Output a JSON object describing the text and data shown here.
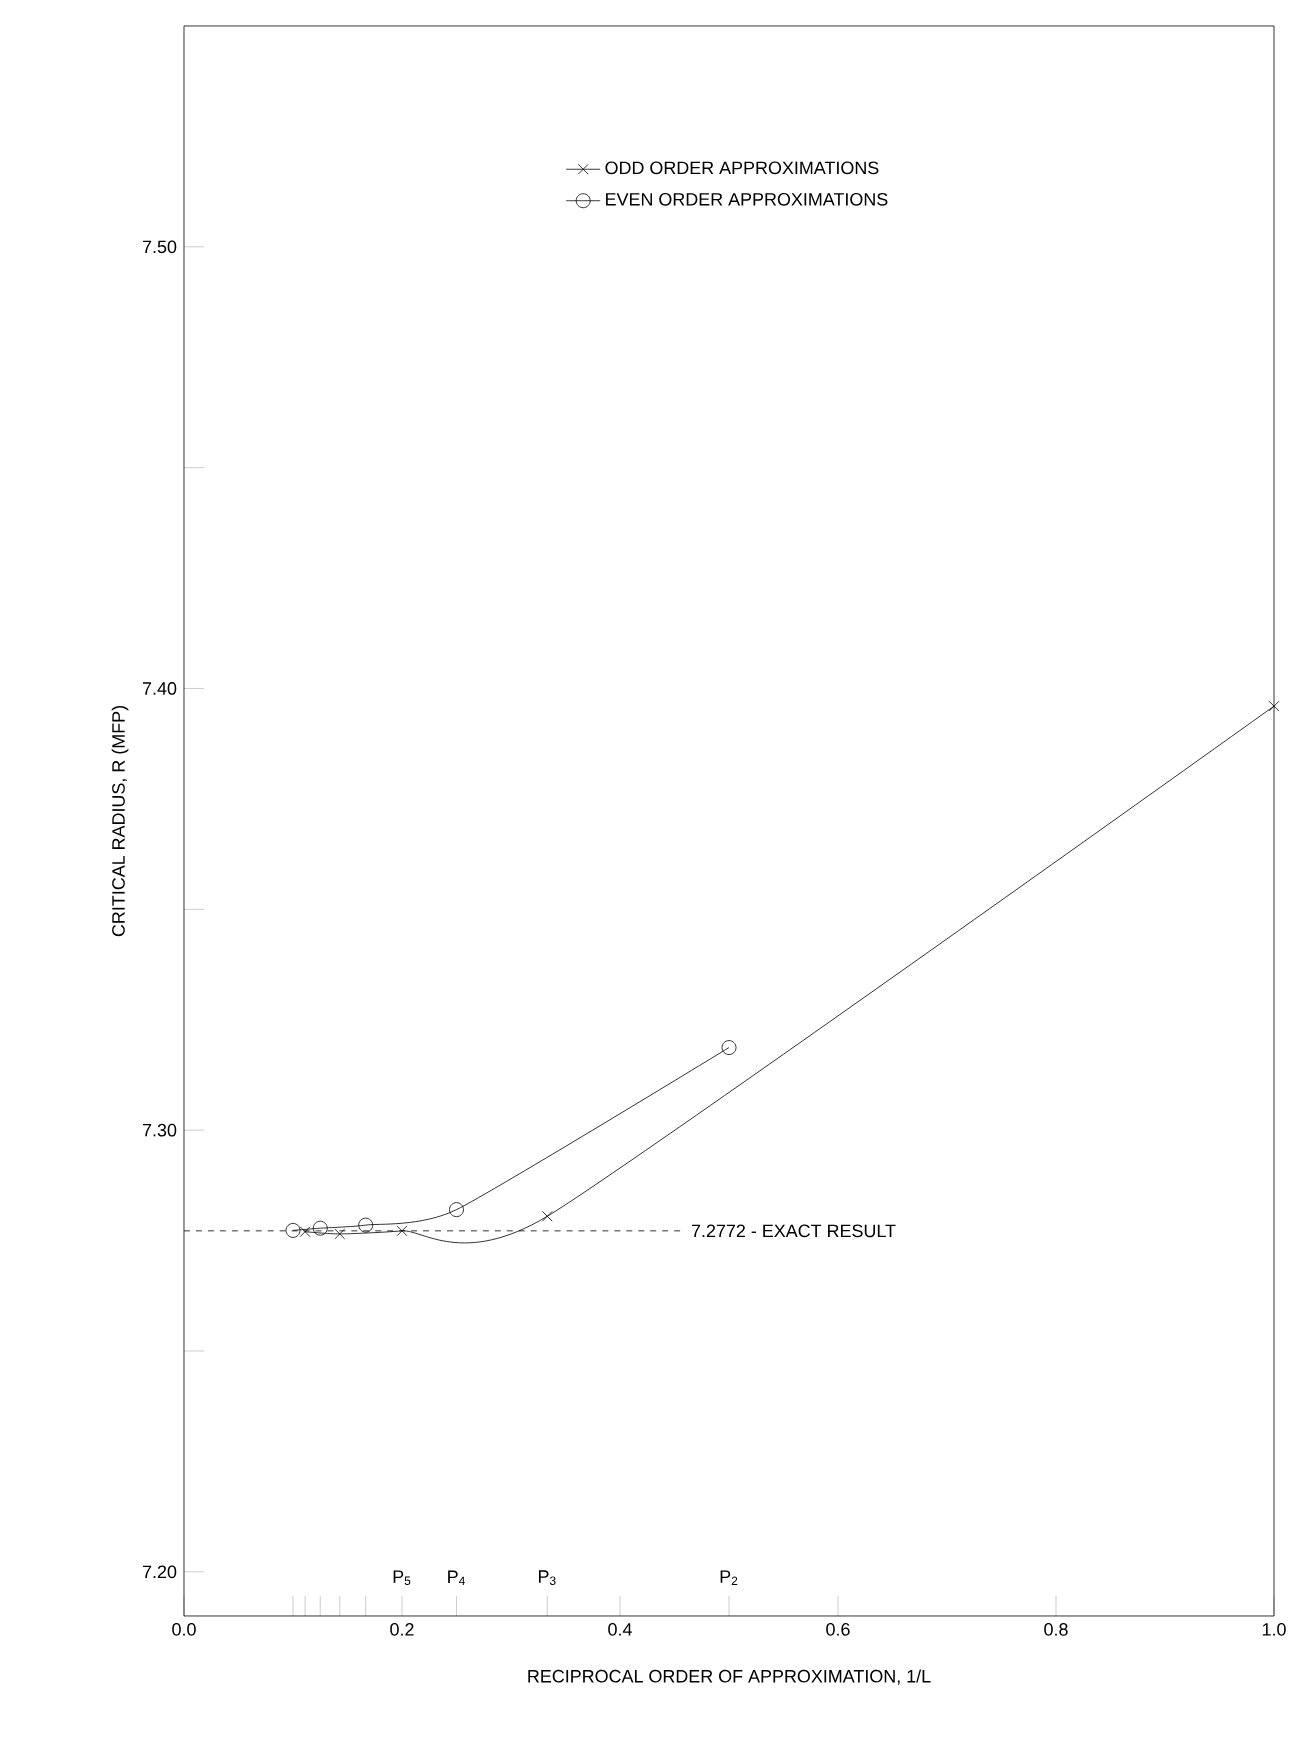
{
  "chart_data": {
    "type": "line",
    "xlabel": "RECIPROCAL ORDER OF APPROXIMATION, 1/L",
    "ylabel": "CRITICAL RADIUS, R (MFP)",
    "series": [
      {
        "name": "ODD ORDER APPROXIMATIONS",
        "color": "#000000",
        "marker": "cross",
        "x": [
          0.1111,
          0.1429,
          0.2,
          0.3333,
          1.0
        ],
        "values": [
          7.277,
          7.2765,
          7.2772,
          7.2805,
          7.396
        ]
      },
      {
        "name": "EVEN ORDER APPROXIMATIONS",
        "color": "#000000",
        "marker": "circle",
        "x": [
          0.1,
          0.125,
          0.1667,
          0.25,
          0.5
        ],
        "values": [
          7.2773,
          7.2778,
          7.2785,
          7.282,
          7.3187
        ]
      }
    ],
    "xlim": [
      0,
      1.0
    ],
    "ylim": [
      7.19,
      7.55
    ],
    "xticks": [
      {
        "value": 0,
        "label": "0.0"
      },
      {
        "value": 0.2,
        "label": "0.2"
      },
      {
        "value": 0.4,
        "label": "0.4"
      },
      {
        "value": 0.6,
        "label": "0.6"
      },
      {
        "value": 0.8,
        "label": "0.8"
      },
      {
        "value": 1.0,
        "label": "1.0"
      },
      {
        "value": 0.1,
        "label": null
      },
      {
        "value": 0.1111,
        "label": null
      },
      {
        "value": 0.125,
        "label": null
      },
      {
        "value": 0.1429,
        "label": null
      },
      {
        "value": 0.1667,
        "label": null
      },
      {
        "value": 0.25,
        "label": null
      },
      {
        "value": 0.3333,
        "label": null
      },
      {
        "value": 0.5,
        "label": null
      }
    ],
    "yticks": [
      {
        "value": 7.2,
        "label": "7.20"
      },
      {
        "value": 7.25,
        "label": null
      },
      {
        "value": 7.3,
        "label": "7.30"
      },
      {
        "value": 7.35,
        "label": null
      },
      {
        "value": 7.4,
        "label": "7.40"
      },
      {
        "value": 7.45,
        "label": null
      },
      {
        "value": 7.5,
        "label": "7.50"
      }
    ],
    "ref_lines": [
      {
        "axis": "y",
        "value": 7.2772,
        "label": "7.2772 - EXACT RESULT",
        "line_style": "dashed"
      }
    ],
    "annotations": [
      {
        "text": "P$_{5}$",
        "x": 0.2
      },
      {
        "text": "P$_{4}$",
        "x": 0.25
      },
      {
        "text": "P$_{3}$",
        "x": 0.3333
      },
      {
        "text": "P$_{2}$",
        "x": 0.5
      }
    ],
    "legend": "top",
    "grid": false
  }
}
